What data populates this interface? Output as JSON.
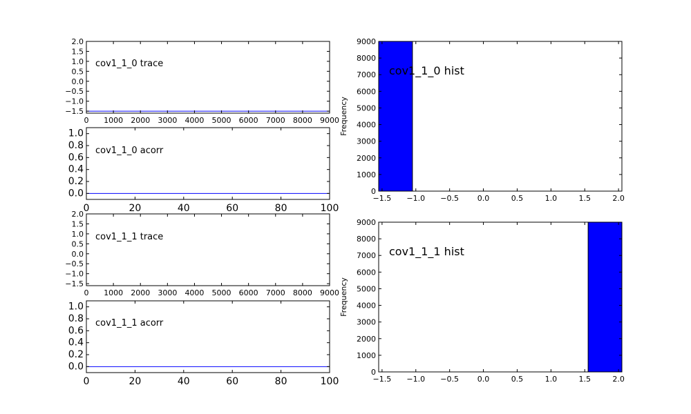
{
  "chart_data": [
    {
      "type": "line",
      "title": "cov1_1_0 trace",
      "xlabel": "",
      "ylabel": "",
      "xlim": [
        0,
        9000
      ],
      "ylim": [
        -1.6,
        2.0
      ],
      "xticks": [
        0,
        1000,
        2000,
        3000,
        4000,
        5000,
        6000,
        7000,
        8000,
        9000
      ],
      "xtick_labels": [
        "0",
        "1000",
        "2000",
        "3000",
        "4000",
        "5000",
        "6000",
        "7000",
        "8000",
        "9000"
      ],
      "yticks": [
        -1.5,
        -1.0,
        -0.5,
        0.0,
        0.5,
        1.0,
        1.5,
        2.0
      ],
      "ytick_labels": [
        "−1.5",
        "−1.0",
        "−0.5",
        "0.0",
        "0.5",
        "1.0",
        "1.5",
        "2.0"
      ],
      "x": [
        0,
        9000
      ],
      "y": [
        -1.5,
        -1.5
      ],
      "color": "#0000ff",
      "grid": false
    },
    {
      "type": "line",
      "title": "cov1_1_0 acorr",
      "xlabel": "",
      "ylabel": "",
      "xlim": [
        0,
        100
      ],
      "ylim": [
        -0.1,
        1.1
      ],
      "xticks": [
        0,
        20,
        40,
        60,
        80,
        100
      ],
      "xtick_labels": [
        "0",
        "20",
        "40",
        "60",
        "80",
        "100"
      ],
      "yticks": [
        0.0,
        0.2,
        0.4,
        0.6,
        0.8,
        1.0
      ],
      "ytick_labels": [
        "0.0",
        "0.2",
        "0.4",
        "0.6",
        "0.8",
        "1.0"
      ],
      "x": [
        0,
        100
      ],
      "y": [
        0.0,
        0.0
      ],
      "color": "#0000ff",
      "grid": false
    },
    {
      "type": "line",
      "title": "cov1_1_1 trace",
      "xlabel": "",
      "ylabel": "",
      "xlim": [
        0,
        9000
      ],
      "ylim": [
        -1.6,
        2.0
      ],
      "xticks": [
        0,
        1000,
        2000,
        3000,
        4000,
        5000,
        6000,
        7000,
        8000,
        9000
      ],
      "xtick_labels": [
        "0",
        "1000",
        "2000",
        "3000",
        "4000",
        "5000",
        "6000",
        "7000",
        "8000",
        "9000"
      ],
      "yticks": [
        -1.5,
        -1.0,
        -0.5,
        0.0,
        0.5,
        1.0,
        1.5,
        2.0
      ],
      "ytick_labels": [
        "−1.5",
        "−1.0",
        "−0.5",
        "0.0",
        "0.5",
        "1.0",
        "1.5",
        "2.0"
      ],
      "x": [
        0,
        9000
      ],
      "y": [
        2.0,
        2.0
      ],
      "color": "#0000ff",
      "grid": false
    },
    {
      "type": "line",
      "title": "cov1_1_1 acorr",
      "xlabel": "",
      "ylabel": "",
      "xlim": [
        0,
        100
      ],
      "ylim": [
        -0.1,
        1.1
      ],
      "xticks": [
        0,
        20,
        40,
        60,
        80,
        100
      ],
      "xtick_labels": [
        "0",
        "20",
        "40",
        "60",
        "80",
        "100"
      ],
      "yticks": [
        0.0,
        0.2,
        0.4,
        0.6,
        0.8,
        1.0
      ],
      "ytick_labels": [
        "0.0",
        "0.2",
        "0.4",
        "0.6",
        "0.8",
        "1.0"
      ],
      "x": [
        0,
        100
      ],
      "y": [
        0.0,
        0.0
      ],
      "color": "#0000ff",
      "grid": false
    },
    {
      "type": "bar",
      "title": "cov1_1_0 hist",
      "xlabel": "",
      "ylabel": "Frequency",
      "xlim": [
        -1.55,
        2.05
      ],
      "ylim": [
        0,
        9000
      ],
      "xticks": [
        -1.5,
        -1.0,
        -0.5,
        0.0,
        0.5,
        1.0,
        1.5,
        2.0
      ],
      "xtick_labels": [
        "−1.5",
        "−1.0",
        "−0.5",
        "0.0",
        "0.5",
        "1.0",
        "1.5",
        "2.0"
      ],
      "yticks": [
        0,
        1000,
        2000,
        3000,
        4000,
        5000,
        6000,
        7000,
        8000,
        9000
      ],
      "ytick_labels": [
        "0",
        "1000",
        "2000",
        "3000",
        "4000",
        "5000",
        "6000",
        "7000",
        "8000",
        "9000"
      ],
      "bins": [
        [
          -1.55,
          -1.05
        ]
      ],
      "values": [
        9000
      ],
      "color": "#0000ff",
      "grid": false
    },
    {
      "type": "bar",
      "title": "cov1_1_1 hist",
      "xlabel": "",
      "ylabel": "Frequency",
      "xlim": [
        -1.55,
        2.05
      ],
      "ylim": [
        0,
        9000
      ],
      "xticks": [
        -1.5,
        -1.0,
        -0.5,
        0.0,
        0.5,
        1.0,
        1.5,
        2.0
      ],
      "xtick_labels": [
        "−1.5",
        "−1.0",
        "−0.5",
        "0.0",
        "0.5",
        "1.0",
        "1.5",
        "2.0"
      ],
      "yticks": [
        0,
        1000,
        2000,
        3000,
        4000,
        5000,
        6000,
        7000,
        8000,
        9000
      ],
      "ytick_labels": [
        "0",
        "1000",
        "2000",
        "3000",
        "4000",
        "5000",
        "6000",
        "7000",
        "8000",
        "9000"
      ],
      "bins": [
        [
          1.55,
          2.05
        ]
      ],
      "values": [
        9000
      ],
      "color": "#0000ff",
      "grid": false
    }
  ]
}
